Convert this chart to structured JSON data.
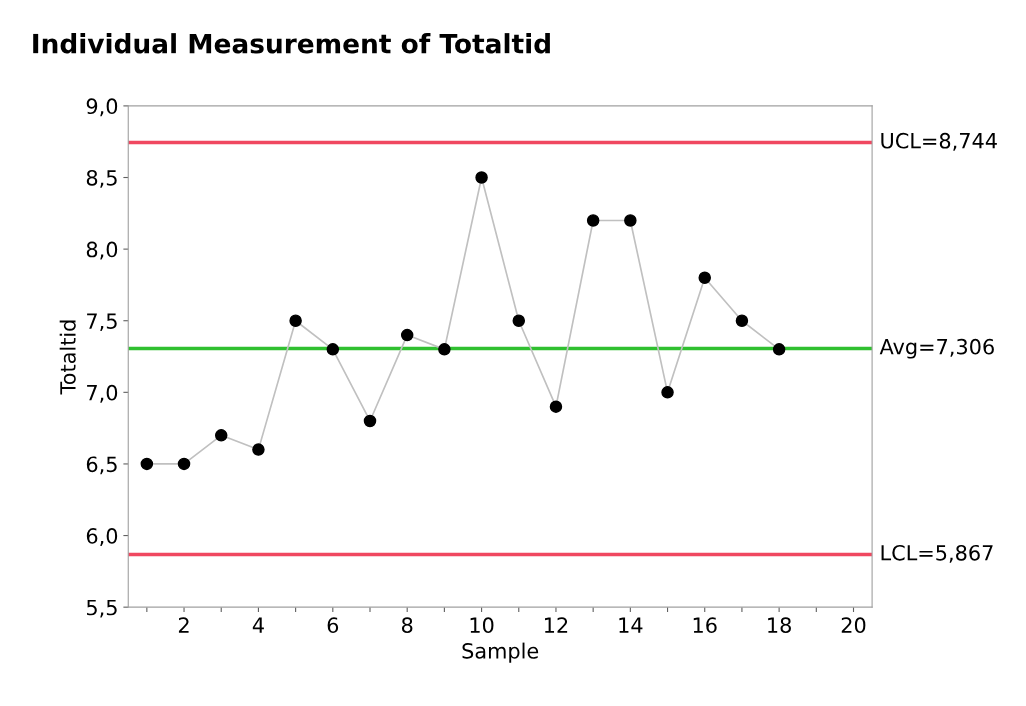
{
  "chart_data": {
    "type": "line",
    "title": "Individual Measurement of Totaltid",
    "xlabel": "Sample",
    "ylabel": "Totaltid",
    "x": [
      1,
      2,
      3,
      4,
      5,
      6,
      7,
      8,
      9,
      10,
      11,
      12,
      13,
      14,
      15,
      16,
      17,
      18
    ],
    "series": [
      {
        "color": "#c0c0c0",
        "values": [
          6.5,
          6.5,
          6.7,
          6.6,
          7.5,
          7.3,
          6.8,
          7.4,
          7.3,
          8.5,
          7.5,
          6.9,
          8.2,
          8.2,
          7.0,
          7.8,
          7.5,
          7.3
        ]
      }
    ],
    "marker": "circle",
    "line_style": "solid",
    "grid": false,
    "legend": false,
    "xlim": [
      0.5,
      20.5
    ],
    "xticks": [
      {
        "value": 1,
        "label": null
      },
      2,
      {
        "value": 3,
        "label": null
      },
      4,
      {
        "value": 5,
        "label": null
      },
      6,
      {
        "value": 7,
        "label": null
      },
      8,
      {
        "value": 9,
        "label": null
      },
      10,
      {
        "value": 11,
        "label": null
      },
      12,
      {
        "value": 13,
        "label": null
      },
      14,
      {
        "value": 15,
        "label": null
      },
      16,
      {
        "value": 17,
        "label": null
      },
      18,
      {
        "value": 19,
        "label": null
      },
      20
    ],
    "ylim": [
      5.5,
      9.0
    ],
    "yticks": [
      {
        "value": 5.5,
        "label": "5,5"
      },
      {
        "value": 6.0,
        "label": "6,0"
      },
      {
        "value": 6.5,
        "label": "6,5"
      },
      {
        "value": 7.0,
        "label": "7,0"
      },
      {
        "value": 7.5,
        "label": "7,5"
      },
      {
        "value": 8.0,
        "label": "8,0"
      },
      {
        "value": 8.5,
        "label": "8,5"
      },
      {
        "value": 9.0,
        "label": "9,0"
      }
    ],
    "ref_lines": [
      {
        "axis": "y",
        "value": 8.744,
        "label": "UCL=8,744",
        "color": "#f04860"
      },
      {
        "axis": "y",
        "value": 7.306,
        "label": "Avg=7,306",
        "color": "#30c030"
      },
      {
        "axis": "y",
        "value": 5.867,
        "label": "LCL=5,867",
        "color": "#f04860"
      }
    ]
  }
}
